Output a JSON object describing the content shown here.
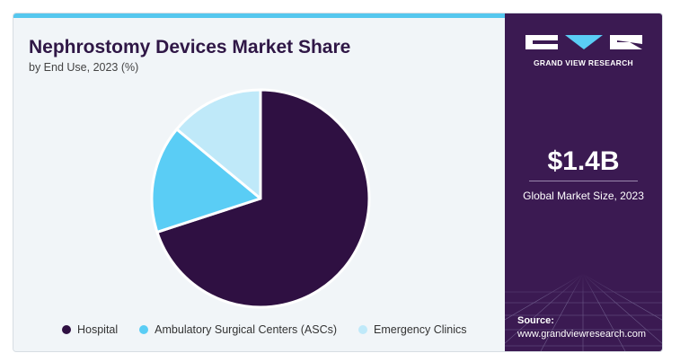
{
  "chart_data": {
    "type": "pie",
    "title": "Nephrostomy Devices Market Share",
    "subtitle": "by End Use, 2023 (%)",
    "categories": [
      "Hospital",
      "Ambulatory Surgical Centers (ASCs)",
      "Emergency Clinics"
    ],
    "values": [
      70,
      16,
      14
    ],
    "colors": [
      "#2f1042",
      "#5acdf5",
      "#bfe9f9"
    ],
    "legend_placement": "bottom"
  },
  "sidebar": {
    "brand": "GRAND VIEW RESEARCH",
    "market_size_value": "$1.4B",
    "market_size_label": "Global Market Size, 2023",
    "source_label": "Source:",
    "source_url": "www.grandviewresearch.com"
  }
}
